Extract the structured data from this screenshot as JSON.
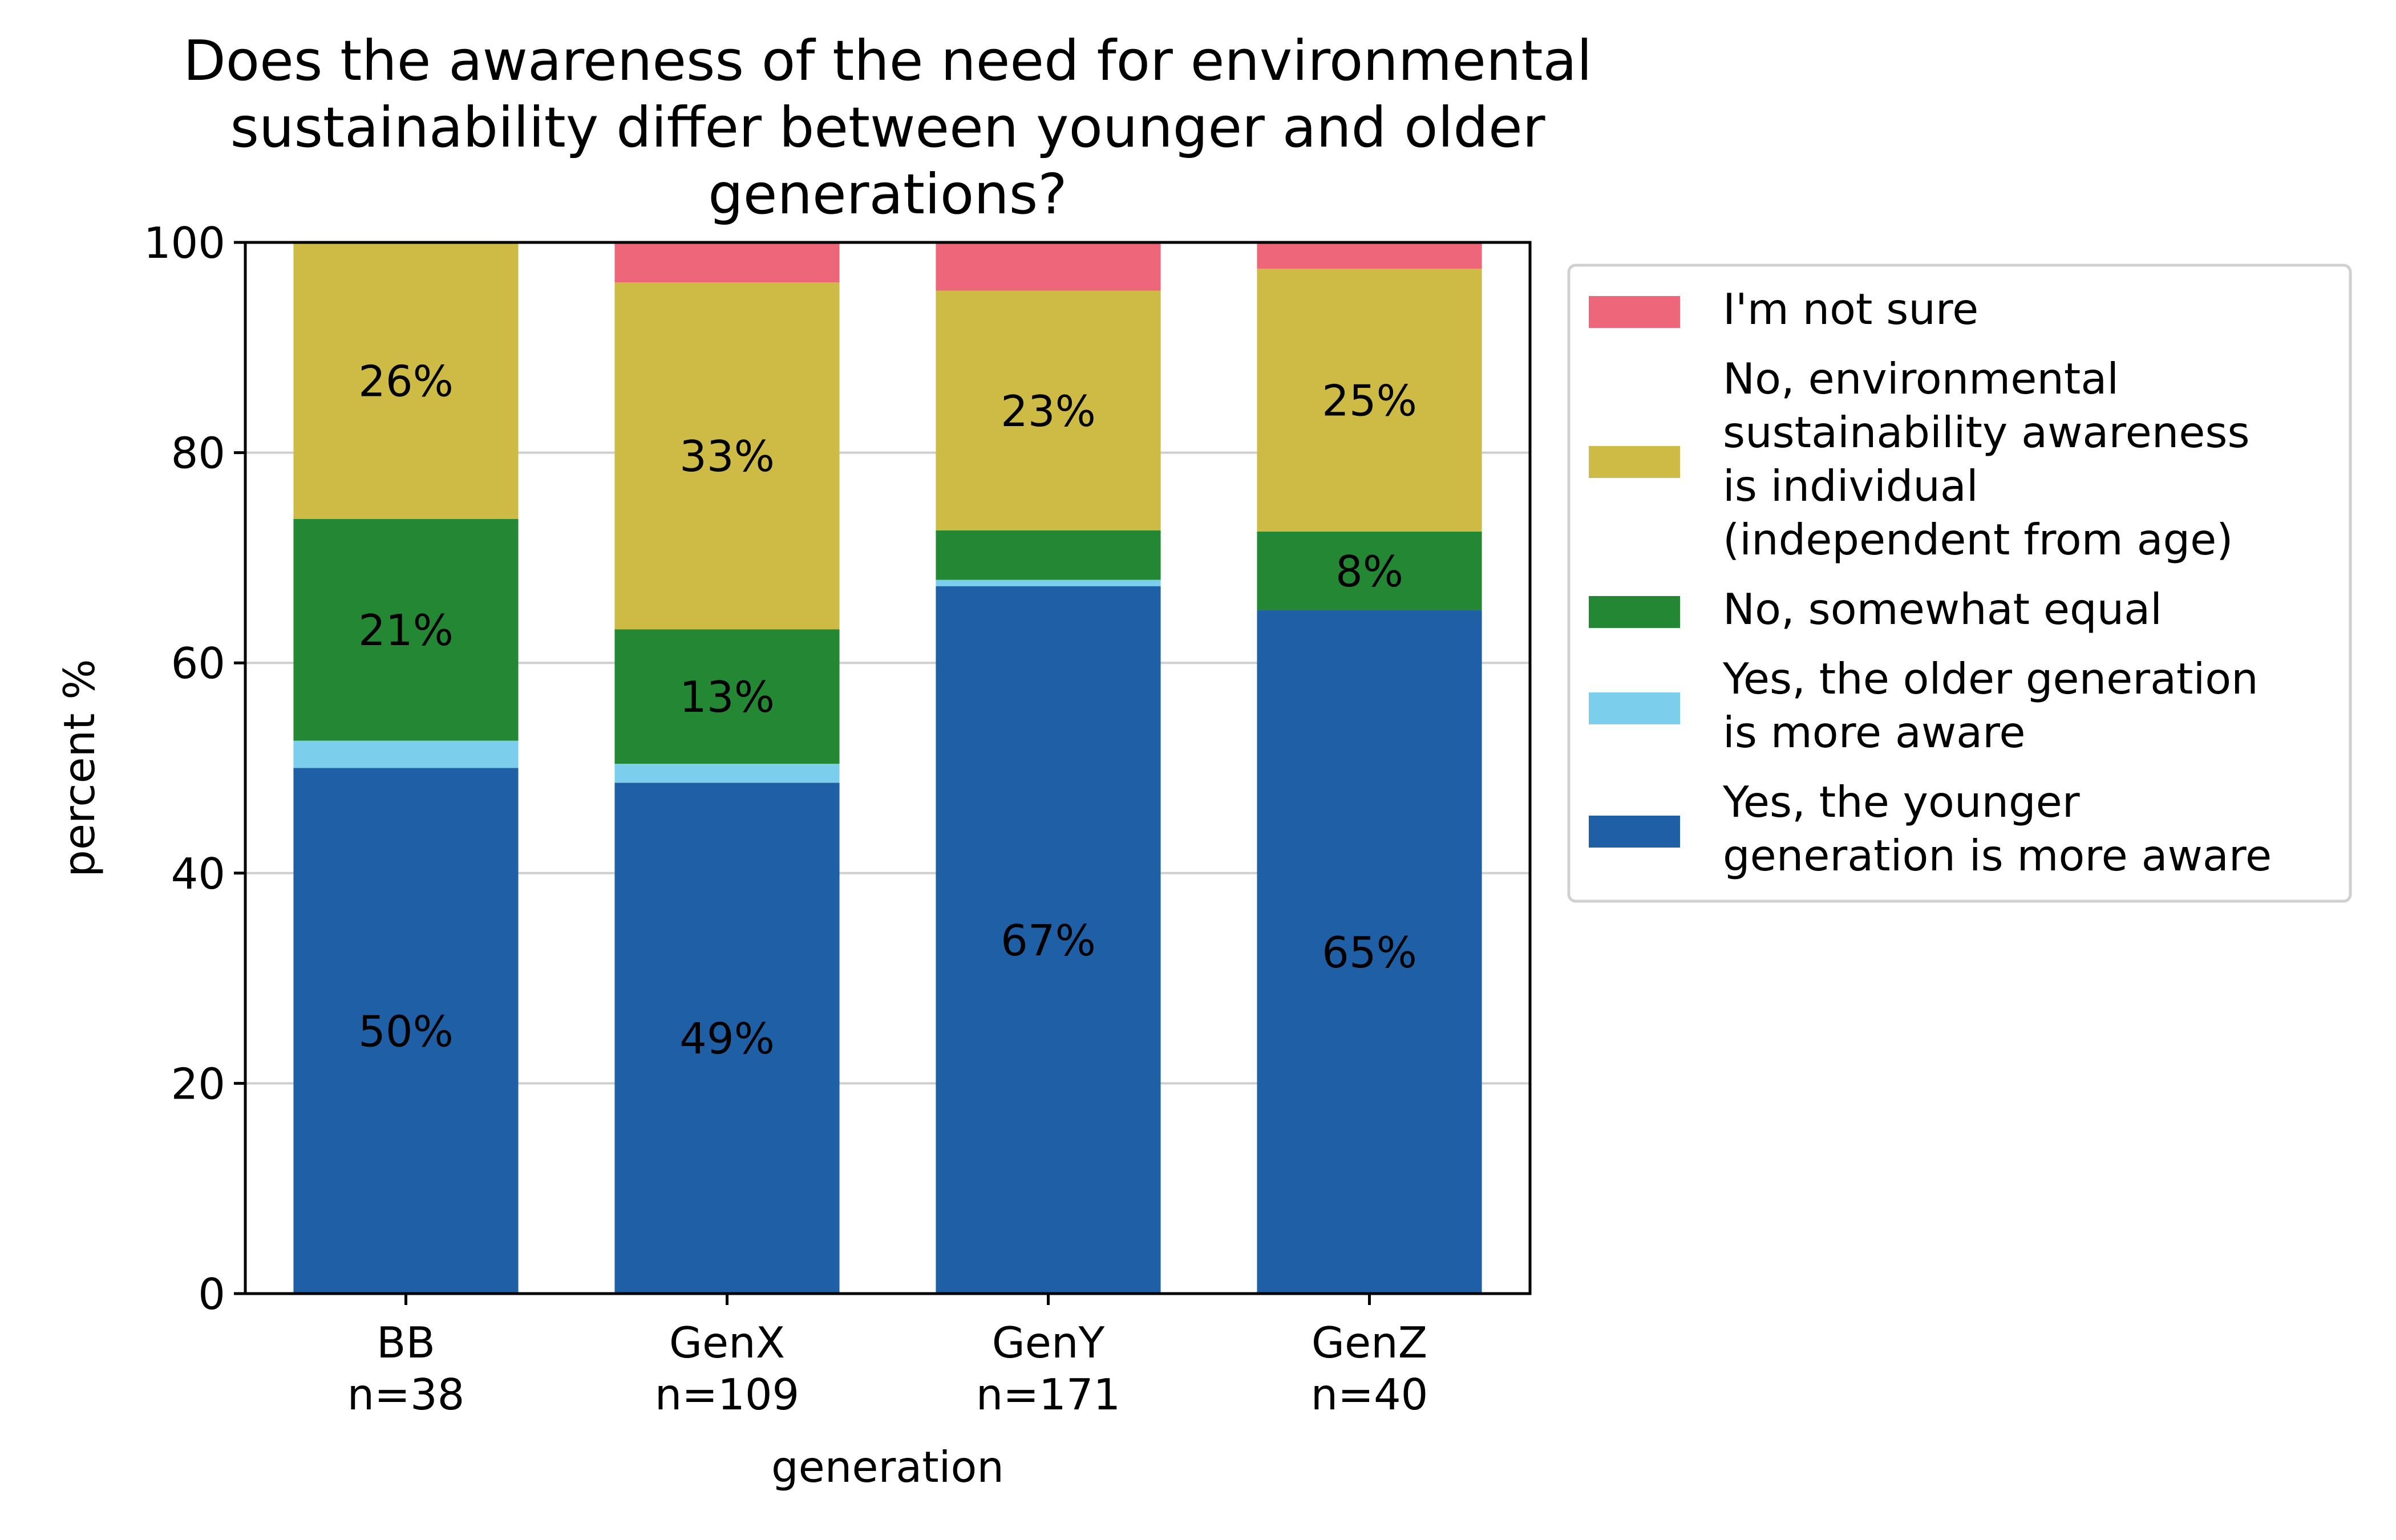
{
  "chart_data": {
    "type": "bar",
    "stacked": true,
    "title": "Does the awareness of the need for environmental sustainability differ between younger and older generations?",
    "title_lines": [
      "Does the awareness of the need for environmental",
      "sustainability differ between younger and older",
      "generations?"
    ],
    "xlabel": "generation",
    "ylabel": "percent %",
    "ylim": [
      0,
      100
    ],
    "yticks": [
      0,
      20,
      40,
      60,
      80,
      100
    ],
    "grid": "horizontal",
    "legend_position": "right",
    "categories": [
      {
        "name": "BB",
        "n": "n=38"
      },
      {
        "name": "GenX",
        "n": "n=109"
      },
      {
        "name": "GenY",
        "n": "n=171"
      },
      {
        "name": "GenZ",
        "n": "n=40"
      }
    ],
    "series": [
      {
        "name": "Yes, the younger generation is more aware",
        "legend_lines": [
          "Yes, the younger",
          "generation is more aware"
        ],
        "color": "#1f5fa6",
        "values": [
          50.0,
          48.6,
          67.3,
          65.0
        ],
        "labels": [
          "50%",
          "49%",
          "67%",
          "65%"
        ]
      },
      {
        "name": "Yes, the older generation is more aware",
        "legend_lines": [
          "Yes, the older generation",
          "is more aware"
        ],
        "color": "#7ccfec",
        "values": [
          2.6,
          1.8,
          0.6,
          0.0
        ],
        "labels": [
          "",
          "",
          "",
          ""
        ]
      },
      {
        "name": "No, somewhat equal",
        "legend_lines": [
          "No, somewhat equal"
        ],
        "color": "#238733",
        "values": [
          21.1,
          12.8,
          4.7,
          7.5
        ],
        "labels": [
          "21%",
          "13%",
          "",
          "8%"
        ]
      },
      {
        "name": "No, environmental sustainability awareness is individual (independent from age)",
        "legend_lines": [
          "No, environmental",
          "sustainability awareness",
          "is individual",
          "(independent from age)"
        ],
        "color": "#cdbb45",
        "values": [
          26.3,
          33.0,
          22.8,
          25.0
        ],
        "labels": [
          "26%",
          "33%",
          "23%",
          "25%"
        ]
      },
      {
        "name": "I'm not sure",
        "legend_lines": [
          "I'm not sure"
        ],
        "color": "#ee667a",
        "values": [
          0.0,
          3.7,
          4.7,
          2.5
        ],
        "labels": [
          "",
          "",
          "",
          ""
        ]
      }
    ]
  }
}
